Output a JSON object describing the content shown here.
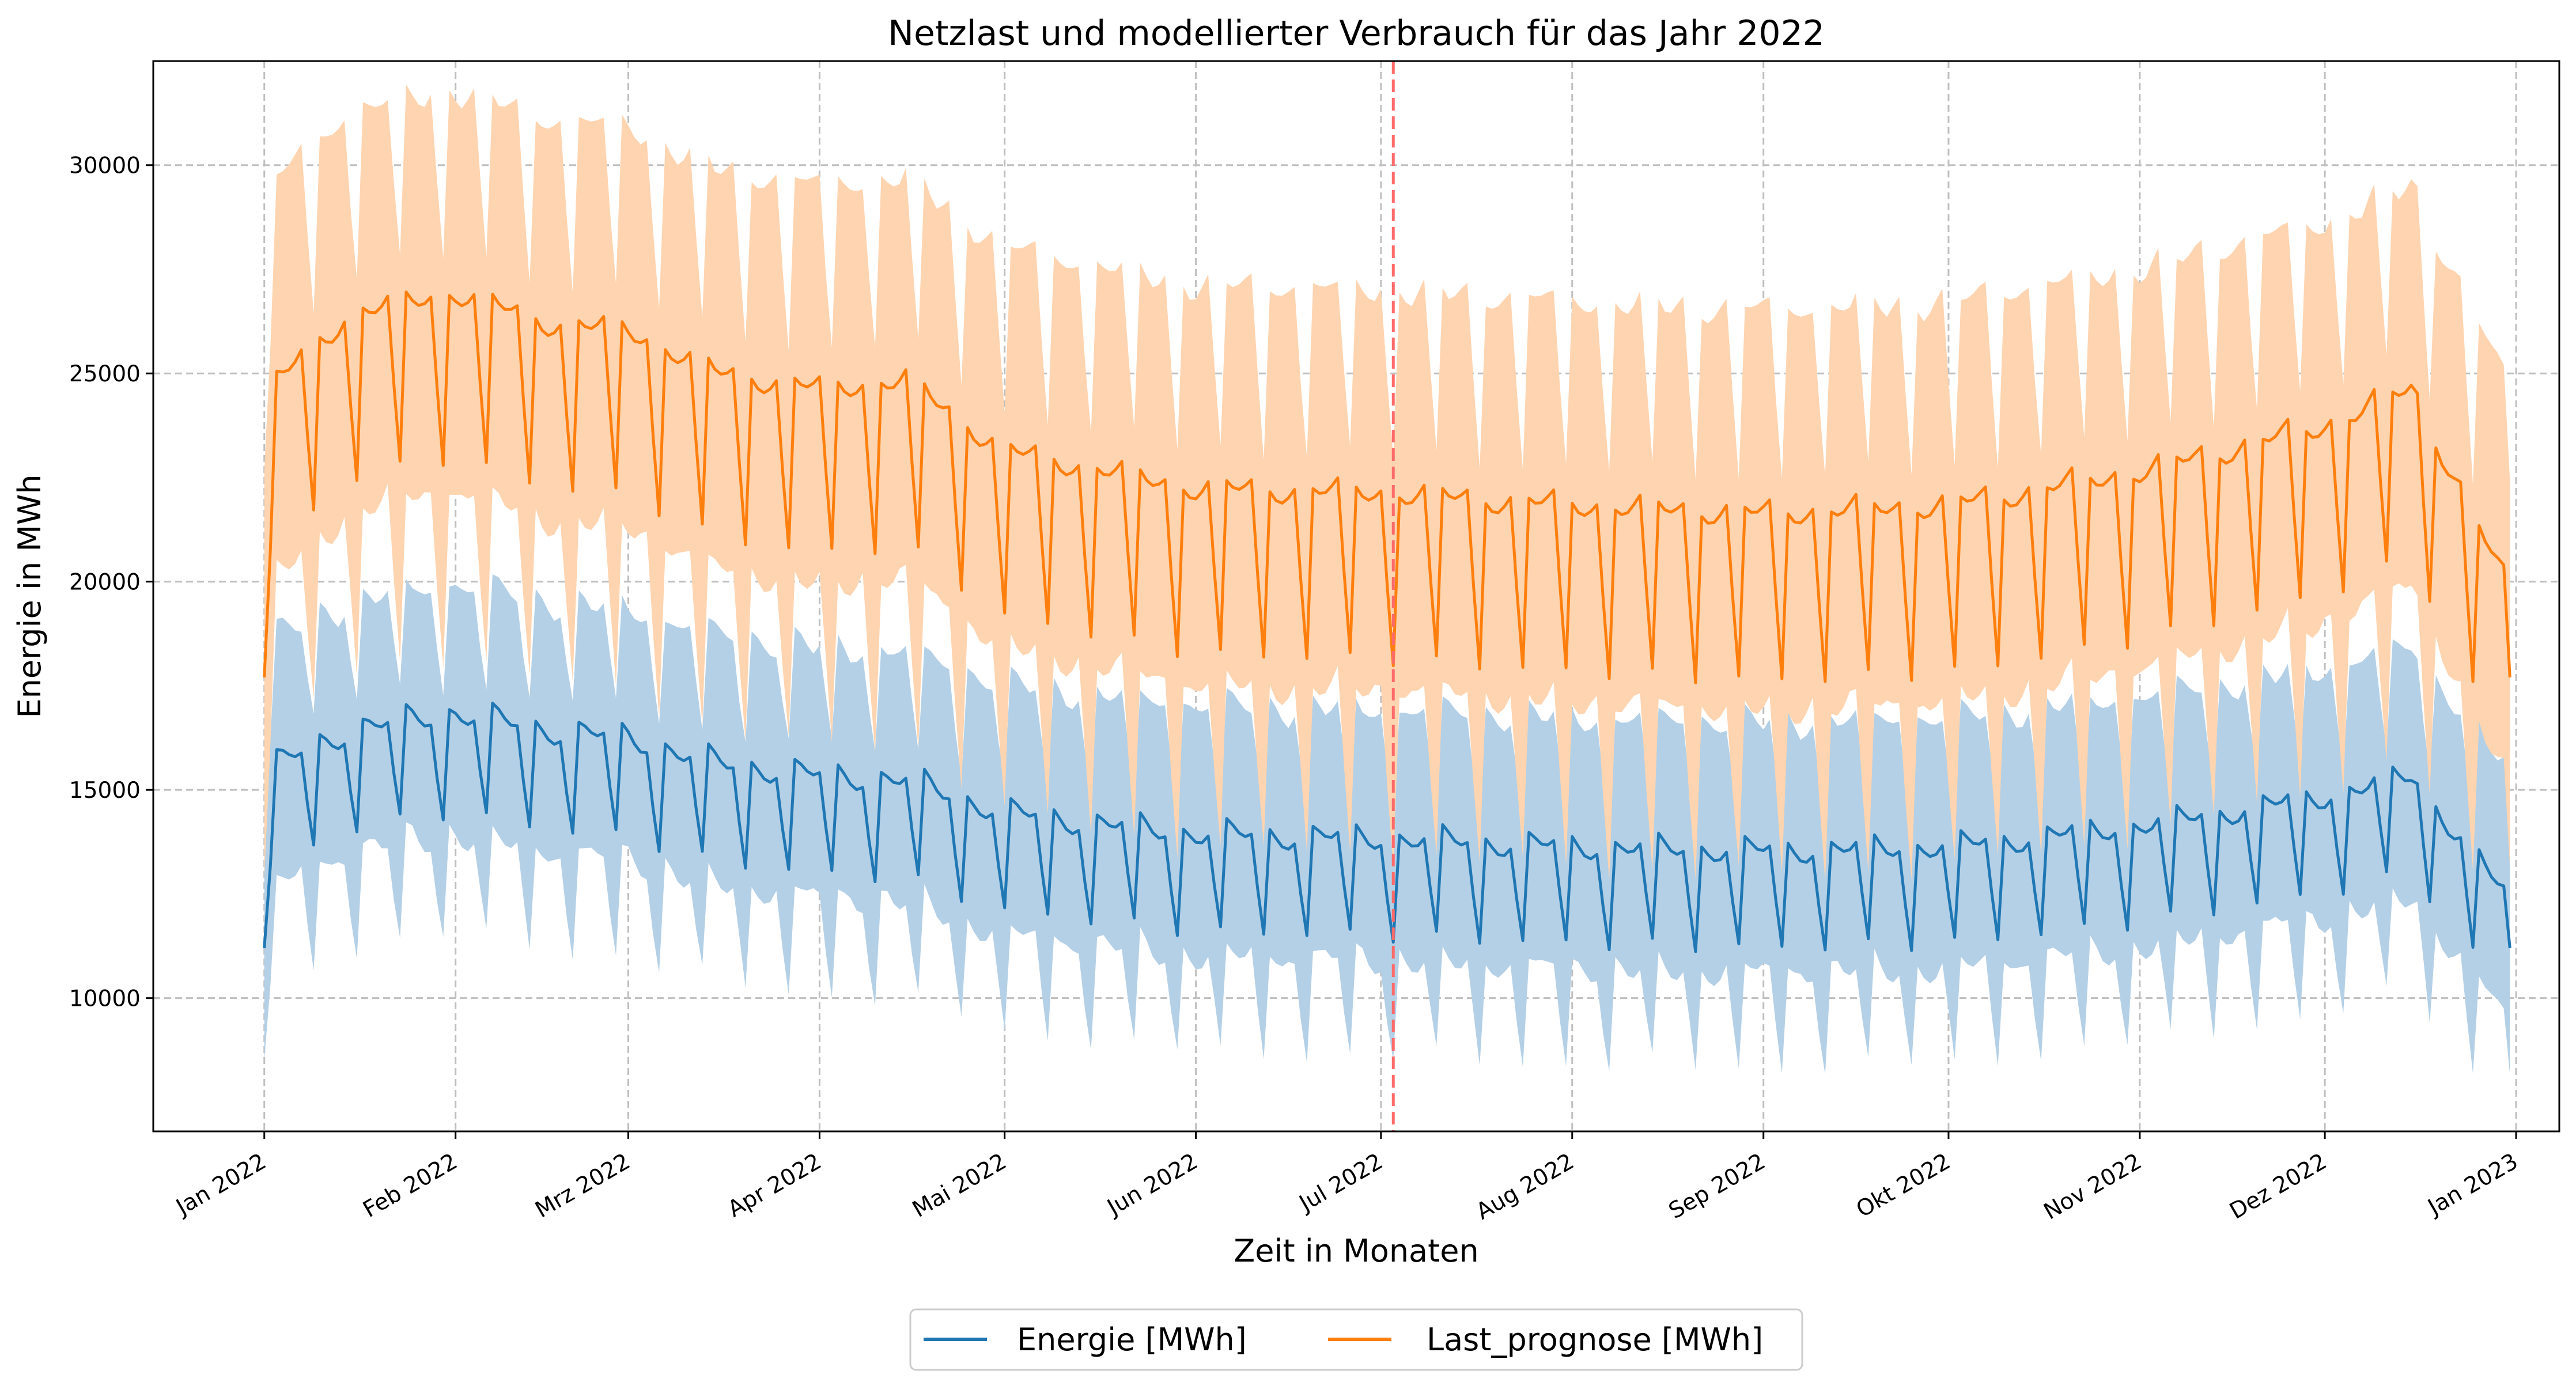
{
  "chart_data": {
    "type": "line",
    "title": "Netzlast und modellierter Verbrauch für das Jahr 2022",
    "xlabel": "Zeit in Monaten",
    "ylabel": "Energie in MWh",
    "x_ticks": [
      "Jan 2022",
      "Feb 2022",
      "Mrz 2022",
      "Apr 2022",
      "Mai 2022",
      "Jun 2022",
      "Jul 2022",
      "Aug 2022",
      "Sep 2022",
      "Okt 2022",
      "Nov 2022",
      "Dez 2022",
      "Jan 2023"
    ],
    "y_ticks": [
      10000,
      15000,
      20000,
      25000,
      30000
    ],
    "ylim": [
      6800,
      32500
    ],
    "xlim": [
      "2021-12-14",
      "2023-01-08"
    ],
    "grid": true,
    "legend_position": "bottom-center",
    "vline": {
      "date": "2022-07-03",
      "color": "#ff6b6b",
      "style": "dashed"
    },
    "series": [
      {
        "name": "Energie [MWh]",
        "color": "#1f77b4",
        "band_color": "#b4d0e6",
        "weekday_baseline": [
          {
            "date": "2022-01-01",
            "value": 15500
          },
          {
            "date": "2022-01-15",
            "value": 16500
          },
          {
            "date": "2022-02-01",
            "value": 16900
          },
          {
            "date": "2022-02-15",
            "value": 16500
          },
          {
            "date": "2022-03-01",
            "value": 16300
          },
          {
            "date": "2022-03-15",
            "value": 15700
          },
          {
            "date": "2022-04-01",
            "value": 15400
          },
          {
            "date": "2022-04-15",
            "value": 15300
          },
          {
            "date": "2022-05-01",
            "value": 14500
          },
          {
            "date": "2022-06-01",
            "value": 14000
          },
          {
            "date": "2022-07-01",
            "value": 13900
          },
          {
            "date": "2022-08-01",
            "value": 13700
          },
          {
            "date": "2022-09-01",
            "value": 13600
          },
          {
            "date": "2022-10-01",
            "value": 13700
          },
          {
            "date": "2022-11-01",
            "value": 14200
          },
          {
            "date": "2022-12-01",
            "value": 14900
          },
          {
            "date": "2022-12-15",
            "value": 15400
          },
          {
            "date": "2022-12-31",
            "value": 12400
          }
        ],
        "weekend_dip": 2600,
        "band_lower_offset": -2700,
        "band_upper_offset": 2900,
        "start_value": 11200,
        "end_value": 11200
      },
      {
        "name": "Last_prognose [MWh]",
        "color": "#ff7f0e",
        "band_color": "#ffd4b0",
        "weekday_baseline": [
          {
            "date": "2022-01-01",
            "value": 24600
          },
          {
            "date": "2022-01-15",
            "value": 26500
          },
          {
            "date": "2022-02-01",
            "value": 27000
          },
          {
            "date": "2022-02-15",
            "value": 26300
          },
          {
            "date": "2022-03-01",
            "value": 26100
          },
          {
            "date": "2022-03-15",
            "value": 25100
          },
          {
            "date": "2022-04-01",
            "value": 24700
          },
          {
            "date": "2022-04-15",
            "value": 24900
          },
          {
            "date": "2022-05-01",
            "value": 23200
          },
          {
            "date": "2022-06-01",
            "value": 22300
          },
          {
            "date": "2022-07-01",
            "value": 22200
          },
          {
            "date": "2022-08-01",
            "value": 21900
          },
          {
            "date": "2022-09-01",
            "value": 21700
          },
          {
            "date": "2022-10-01",
            "value": 21900
          },
          {
            "date": "2022-11-01",
            "value": 22700
          },
          {
            "date": "2022-12-01",
            "value": 23800
          },
          {
            "date": "2022-12-15",
            "value": 24700
          },
          {
            "date": "2022-12-31",
            "value": 19800
          }
        ],
        "weekend_dip": 4200,
        "band_lower_offset": -4500,
        "band_upper_offset": 4700,
        "start_value": 17700,
        "end_value": 17700
      }
    ]
  }
}
